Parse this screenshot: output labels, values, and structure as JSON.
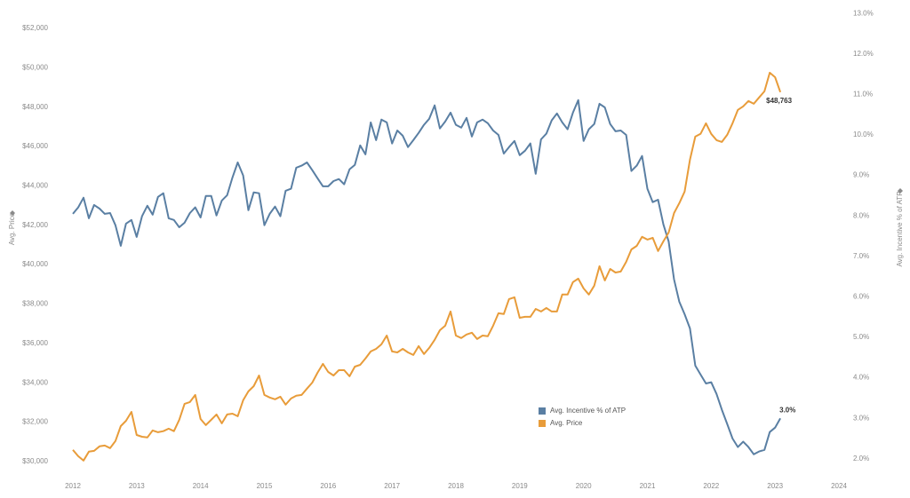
{
  "chart_data": {
    "type": "line",
    "x": [
      2012,
      2012.083,
      2012.167,
      2012.25,
      2012.333,
      2012.417,
      2012.5,
      2012.583,
      2012.667,
      2012.75,
      2012.833,
      2012.917,
      2013,
      2013.083,
      2013.167,
      2013.25,
      2013.333,
      2013.417,
      2013.5,
      2013.583,
      2013.667,
      2013.75,
      2013.833,
      2013.917,
      2014,
      2014.083,
      2014.167,
      2014.25,
      2014.333,
      2014.417,
      2014.5,
      2014.583,
      2014.667,
      2014.75,
      2014.833,
      2014.917,
      2015,
      2015.083,
      2015.167,
      2015.25,
      2015.333,
      2015.417,
      2015.5,
      2015.583,
      2015.667,
      2015.75,
      2015.833,
      2015.917,
      2016,
      2016.083,
      2016.167,
      2016.25,
      2016.333,
      2016.417,
      2016.5,
      2016.583,
      2016.667,
      2016.75,
      2016.833,
      2016.917,
      2017,
      2017.083,
      2017.167,
      2017.25,
      2017.333,
      2017.417,
      2017.5,
      2017.583,
      2017.667,
      2017.75,
      2017.833,
      2017.917,
      2018,
      2018.083,
      2018.167,
      2018.25,
      2018.333,
      2018.417,
      2018.5,
      2018.583,
      2018.667,
      2018.75,
      2018.833,
      2018.917,
      2019,
      2019.083,
      2019.167,
      2019.25,
      2019.333,
      2019.417,
      2019.5,
      2019.583,
      2019.667,
      2019.75,
      2019.833,
      2019.917,
      2020,
      2020.083,
      2020.167,
      2020.25,
      2020.333,
      2020.417,
      2020.5,
      2020.583,
      2020.667,
      2020.75,
      2020.833,
      2020.917,
      2021,
      2021.083,
      2021.167,
      2021.25,
      2021.333,
      2021.417,
      2021.5,
      2021.583,
      2021.667,
      2021.75,
      2021.833,
      2021.917,
      2022,
      2022.083,
      2022.167,
      2022.25,
      2022.333,
      2022.417,
      2022.5,
      2022.583,
      2022.667,
      2022.75,
      2022.833,
      2022.917,
      2023,
      2023.083
    ],
    "series": [
      {
        "name": "Avg. Incentive % of ATP",
        "color": "#5a7fa3",
        "axis": "y2",
        "values": [
          8.05,
          8.21,
          8.45,
          7.94,
          8.27,
          8.18,
          8.05,
          8.07,
          7.77,
          7.26,
          7.81,
          7.9,
          7.48,
          7.99,
          8.25,
          8.03,
          8.47,
          8.56,
          7.94,
          7.9,
          7.72,
          7.83,
          8.07,
          8.21,
          7.96,
          8.49,
          8.49,
          8.01,
          8.38,
          8.51,
          8.95,
          9.32,
          9.0,
          8.14,
          8.58,
          8.56,
          7.77,
          8.05,
          8.23,
          7.99,
          8.62,
          8.67,
          9.19,
          9.24,
          9.32,
          9.13,
          8.93,
          8.73,
          8.73,
          8.86,
          8.91,
          8.78,
          9.15,
          9.26,
          9.74,
          9.52,
          10.31,
          9.87,
          10.38,
          10.31,
          9.79,
          10.11,
          9.98,
          9.7,
          9.87,
          10.05,
          10.25,
          10.4,
          10.73,
          10.16,
          10.33,
          10.55,
          10.25,
          10.18,
          10.42,
          9.96,
          10.31,
          10.38,
          10.29,
          10.11,
          10.0,
          9.54,
          9.7,
          9.85,
          9.5,
          9.61,
          9.79,
          9.04,
          9.89,
          10.03,
          10.36,
          10.53,
          10.31,
          10.14,
          10.55,
          10.86,
          9.85,
          10.14,
          10.27,
          10.77,
          10.68,
          10.27,
          10.09,
          10.11,
          10.0,
          9.11,
          9.24,
          9.48,
          8.67,
          8.34,
          8.4,
          7.79,
          7.37,
          6.43,
          5.88,
          5.57,
          5.22,
          4.3,
          4.08,
          3.86,
          3.89,
          3.6,
          3.21,
          2.86,
          2.5,
          2.29,
          2.42,
          2.29,
          2.11,
          2.18,
          2.22,
          2.66,
          2.77,
          3.0
        ],
        "value_labels": [
          null,
          null,
          null,
          null,
          null,
          null,
          null,
          null,
          null,
          null,
          null,
          null,
          null,
          null,
          null,
          null,
          null,
          null,
          null,
          null,
          null,
          null,
          null,
          null,
          null,
          null,
          null,
          null,
          null,
          null,
          null,
          null,
          null,
          null,
          null,
          null,
          null,
          null,
          null,
          null,
          null,
          null,
          null,
          null,
          null,
          null,
          null,
          null,
          null,
          null,
          null,
          null,
          null,
          null,
          null,
          null,
          null,
          null,
          null,
          null,
          null,
          null,
          null,
          null,
          null,
          null,
          null,
          null,
          null,
          null,
          null,
          null,
          null,
          null,
          null,
          null,
          null,
          null,
          null,
          null,
          null,
          null,
          null,
          null,
          null,
          null,
          null,
          null,
          null,
          null,
          null,
          null,
          null,
          null,
          null,
          null,
          null,
          null,
          null,
          null,
          null,
          null,
          null,
          null,
          null,
          null,
          null,
          null,
          null,
          null,
          null,
          null,
          null,
          null,
          null,
          null,
          null,
          null,
          null,
          null,
          null,
          null,
          null,
          null,
          null,
          null,
          null,
          null,
          null,
          null,
          null,
          null,
          null,
          "3.0%"
        ]
      },
      {
        "name": "Avg. Price",
        "color": "#e89c3a",
        "values": [
          30590,
          30270,
          30050,
          30500,
          30540,
          30770,
          30810,
          30680,
          31040,
          31800,
          32070,
          32520,
          31350,
          31260,
          31220,
          31580,
          31490,
          31540,
          31670,
          31540,
          32120,
          32930,
          33020,
          33380,
          32160,
          31850,
          32120,
          32390,
          31940,
          32390,
          32430,
          32300,
          33110,
          33560,
          33830,
          34370,
          33380,
          33250,
          33160,
          33290,
          32890,
          33200,
          33340,
          33380,
          33700,
          34010,
          34510,
          34960,
          34550,
          34370,
          34640,
          34640,
          34330,
          34820,
          34910,
          35230,
          35590,
          35720,
          35950,
          36400,
          35590,
          35540,
          35720,
          35540,
          35410,
          35860,
          35460,
          35770,
          36180,
          36670,
          36900,
          37620,
          36400,
          36270,
          36450,
          36540,
          36220,
          36400,
          36360,
          36900,
          37530,
          37490,
          38250,
          38340,
          37300,
          37350,
          37350,
          37750,
          37620,
          37800,
          37620,
          37620,
          38480,
          38480,
          39110,
          39290,
          38790,
          38480,
          38930,
          39920,
          39200,
          39780,
          39600,
          39650,
          40140,
          40770,
          40950,
          41410,
          41270,
          41360,
          40690,
          41180,
          41630,
          42620,
          43120,
          43710,
          45330,
          46500,
          46640,
          47180,
          46640,
          46320,
          46230,
          46590,
          47180,
          47860,
          48040,
          48310,
          48170,
          48490,
          48800,
          49750,
          49520,
          48763
        ],
        "value_labels": [
          null,
          null,
          null,
          null,
          null,
          null,
          null,
          null,
          null,
          null,
          null,
          null,
          null,
          null,
          null,
          null,
          null,
          null,
          null,
          null,
          null,
          null,
          null,
          null,
          null,
          null,
          null,
          null,
          null,
          null,
          null,
          null,
          null,
          null,
          null,
          null,
          null,
          null,
          null,
          null,
          null,
          null,
          null,
          null,
          null,
          null,
          null,
          null,
          null,
          null,
          null,
          null,
          null,
          null,
          null,
          null,
          null,
          null,
          null,
          null,
          null,
          null,
          null,
          null,
          null,
          null,
          null,
          null,
          null,
          null,
          null,
          null,
          null,
          null,
          null,
          null,
          null,
          null,
          null,
          null,
          null,
          null,
          null,
          null,
          null,
          null,
          null,
          null,
          null,
          null,
          null,
          null,
          null,
          null,
          null,
          null,
          null,
          null,
          null,
          null,
          null,
          null,
          null,
          null,
          null,
          null,
          null,
          null,
          null,
          null,
          null,
          null,
          null,
          null,
          null,
          null,
          null,
          null,
          null,
          null,
          null,
          null,
          null,
          null,
          null,
          null,
          null,
          null,
          null,
          null,
          null,
          null,
          null,
          "$48,763"
        ]
      }
    ],
    "ylabel": "Avg. Price",
    "y2label": "Avg. Incentive % of ATP",
    "xlim": [
      2012,
      2024
    ],
    "xticks": [
      2012,
      2013,
      2014,
      2015,
      2016,
      2017,
      2018,
      2019,
      2020,
      2021,
      2022,
      2023,
      2024
    ],
    "ylim": [
      29770,
      52900
    ],
    "yticks": [
      {
        "value": 30000,
        "label": "$30,000"
      },
      {
        "value": 32000,
        "label": "$32,000"
      },
      {
        "value": 34000,
        "label": "$34,000"
      },
      {
        "value": 36000,
        "label": "$36,000"
      },
      {
        "value": 38000,
        "label": "$38,000"
      },
      {
        "value": 40000,
        "label": "$40,000"
      },
      {
        "value": 42000,
        "label": "$42,000"
      },
      {
        "value": 44000,
        "label": "$44,000"
      },
      {
        "value": 46000,
        "label": "$46,000"
      },
      {
        "value": 48000,
        "label": "$48,000"
      },
      {
        "value": 50000,
        "label": "$50,000"
      },
      {
        "value": 52000,
        "label": "$52,000"
      }
    ],
    "y2lim": [
      1.82,
      13.07
    ],
    "y2ticks": [
      {
        "value": 2,
        "label": "2.0%"
      },
      {
        "value": 3,
        "label": "3.0%"
      },
      {
        "value": 4,
        "label": "4.0%"
      },
      {
        "value": 5,
        "label": "5.0%"
      },
      {
        "value": 6,
        "label": "6.0%"
      },
      {
        "value": 7,
        "label": "7.0%"
      },
      {
        "value": 8,
        "label": "8.0%"
      },
      {
        "value": 9,
        "label": "9.0%"
      },
      {
        "value": 10,
        "label": "10.0%"
      },
      {
        "value": 11,
        "label": "11.0%"
      },
      {
        "value": 12,
        "label": "12.0%"
      },
      {
        "value": 13,
        "label": "13.0%"
      }
    ],
    "grid": false
  }
}
